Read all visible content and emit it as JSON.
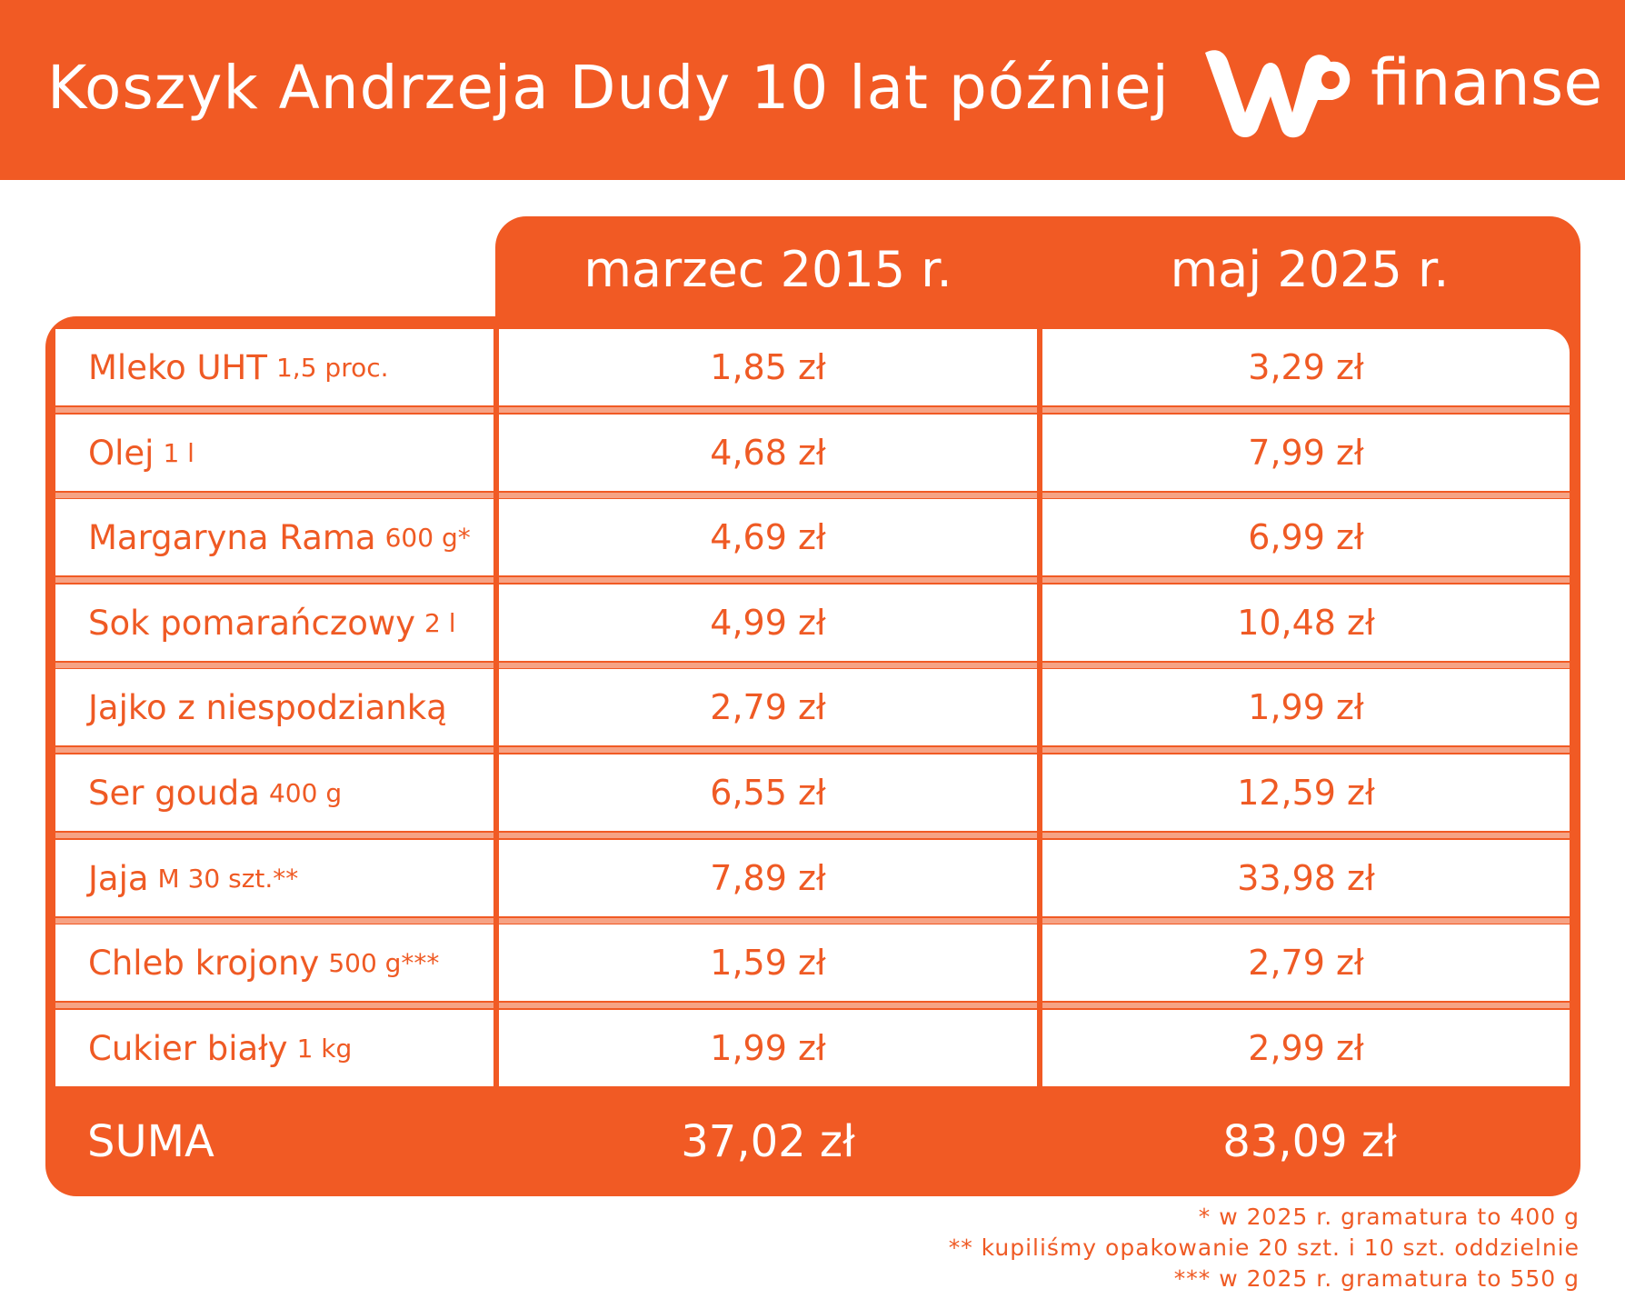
{
  "header": {
    "title": "Koszyk Andrzeja Dudy 10 lat później",
    "logo_text": "finanse",
    "logo_mark": "WP"
  },
  "colors": {
    "brand_orange": "#f15a24",
    "row_separator": "#f6a385",
    "text_white": "#ffffff"
  },
  "table": {
    "columns": [
      "marzec 2015 r.",
      "maj 2025 r."
    ],
    "rows": [
      {
        "name": "Mleko UHT",
        "unit": "1,5 proc.",
        "v2015": "1,85 zł",
        "v2025": "3,29 zł"
      },
      {
        "name": "Olej",
        "unit": "1 l",
        "v2015": "4,68 zł",
        "v2025": "7,99 zł"
      },
      {
        "name": "Margaryna Rama",
        "unit": "600 g*",
        "v2015": "4,69 zł",
        "v2025": "6,99 zł"
      },
      {
        "name": "Sok pomarańczowy",
        "unit": "2 l",
        "v2015": "4,99 zł",
        "v2025": "10,48 zł"
      },
      {
        "name": "Jajko z niespodzianką",
        "unit": "",
        "v2015": "2,79 zł",
        "v2025": "1,99 zł"
      },
      {
        "name": "Ser gouda",
        "unit": "400 g",
        "v2015": "6,55 zł",
        "v2025": "12,59 zł"
      },
      {
        "name": "Jaja",
        "unit": "M 30 szt.**",
        "v2015": "7,89 zł",
        "v2025": "33,98 zł"
      },
      {
        "name": "Chleb krojony",
        "unit": "500 g***",
        "v2015": "1,59 zł",
        "v2025": "2,79 zł"
      },
      {
        "name": "Cukier biały",
        "unit": "1 kg",
        "v2015": "1,99 zł",
        "v2025": "2,99 zł"
      }
    ],
    "sum": {
      "label": "SUMA",
      "v2015": "37,02 zł",
      "v2025": "83,09 zł"
    }
  },
  "footnotes": [
    "* w 2025 r. gramatura to 400 g",
    "** kupiliśmy opakowanie 20 szt. i 10 szt. oddzielnie",
    "*** w 2025 r. gramatura to 550 g"
  ]
}
